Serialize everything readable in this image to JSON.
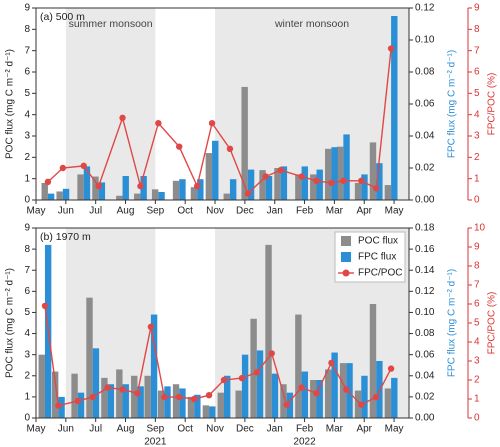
{
  "chart_data": [
    {
      "type": "bar-line",
      "label": "(a) 500 m",
      "x": [
        0.4,
        0.9,
        1.6,
        2.1,
        2.9,
        3.5,
        4.1,
        4.8,
        5.4,
        5.9,
        6.5,
        7.1,
        7.7,
        8.2,
        8.9,
        9.4,
        9.9,
        10.3,
        10.9,
        11.4,
        11.9
      ],
      "series": [
        {
          "color": "#8c8c8c",
          "values": [
            0.8,
            0.4,
            1.2,
            1.1,
            0.2,
            0.3,
            0.5,
            0.9,
            0.6,
            2.2,
            0.3,
            5.3,
            1.4,
            1.5,
            1.2,
            1.2,
            2.4,
            2.5,
            0.8,
            2.7,
            0.7
          ]
        },
        {
          "color": "#2b8fd6",
          "axis": "y2",
          "values": [
            0.004,
            0.007,
            0.021,
            0.011,
            0.015,
            0.015,
            0.005,
            0.013,
            0.013,
            0.037,
            0.013,
            0.019,
            0.015,
            0.021,
            0.021,
            0.019,
            0.033,
            0.041,
            0.016,
            0.023,
            0.115
          ]
        },
        {
          "color": "#e04848",
          "axis": "y3",
          "values": [
            0.85,
            1.5,
            1.6,
            0.65,
            3.85,
            0.65,
            3.6,
            2.5,
            0.65,
            3.6,
            2.4,
            0.3,
            1.1,
            1.4,
            1.1,
            0.9,
            0.8,
            0.9,
            0.9,
            0.55,
            7.1
          ]
        }
      ],
      "ylabel": "POC flux (mg C m⁻² d⁻¹)",
      "y2label": "FPC flux (mg C m⁻² d⁻¹)",
      "y3label": "FPC/POC (%)",
      "xlim": [
        0,
        12.5
      ],
      "xticks": [
        {
          "value": 0,
          "label": "May"
        },
        {
          "value": 1,
          "label": "Jun"
        },
        {
          "value": 2,
          "label": "Jul"
        },
        {
          "value": 3,
          "label": "Aug"
        },
        {
          "value": 4,
          "label": "Sep"
        },
        {
          "value": 5,
          "label": "Oct"
        },
        {
          "value": 6,
          "label": "Nov"
        },
        {
          "value": 7,
          "label": "Dec"
        },
        {
          "value": 8,
          "label": "Jan"
        },
        {
          "value": 9,
          "label": "Feb"
        },
        {
          "value": 10,
          "label": "Mar"
        },
        {
          "value": 11,
          "label": "Apr"
        },
        {
          "value": 12,
          "label": "May"
        }
      ],
      "ylim": [
        0,
        9
      ],
      "yticks": [
        0,
        1,
        2,
        3,
        4,
        5,
        6,
        7,
        8,
        9
      ],
      "y2lim": [
        0,
        0.12
      ],
      "y2ticks": [
        {
          "value": 0,
          "label": "0.00"
        },
        0.02,
        0.04,
        0.06,
        0.08,
        {
          "value": 0.1,
          "label": "0.10"
        },
        0.12
      ],
      "y3lim": [
        0,
        9
      ],
      "y3ticks": [
        0,
        1,
        2,
        3,
        4,
        5,
        6,
        7,
        8,
        9
      ],
      "shading": [
        {
          "range": [
            1,
            4
          ],
          "label": "summer monsoon"
        },
        {
          "range": [
            6,
            12.5
          ],
          "label": "winter monsoon"
        }
      ]
    },
    {
      "type": "bar-line",
      "label": "(b) 1970 m",
      "x": [
        0.3,
        0.75,
        1.4,
        1.9,
        2.4,
        2.9,
        3.4,
        3.85,
        4.3,
        4.8,
        5.3,
        5.8,
        6.3,
        6.9,
        7.4,
        7.9,
        8.4,
        8.9,
        9.4,
        9.9,
        10.4,
        10.9,
        11.4,
        11.9
      ],
      "series": [
        {
          "name": "POC flux",
          "color": "#8c8c8c",
          "values": [
            3.0,
            2.2,
            2.1,
            5.7,
            1.9,
            2.3,
            2.0,
            2.0,
            1.3,
            1.6,
            1.0,
            0.6,
            1.2,
            1.3,
            4.7,
            8.2,
            1.6,
            4.9,
            1.8,
            2.3,
            2.6,
            1.3,
            5.4,
            1.4
          ]
        },
        {
          "name": "FPC flux",
          "color": "#2b8fd6",
          "axis": "y2",
          "values": [
            0.164,
            0.02,
            0.024,
            0.066,
            0.032,
            0.032,
            0.03,
            0.098,
            0.03,
            0.028,
            0.022,
            0.011,
            0.04,
            0.06,
            0.064,
            0.042,
            0.024,
            0.044,
            0.036,
            0.062,
            0.052,
            0.04,
            0.054,
            0.038
          ]
        },
        {
          "name": "FPC/POC",
          "color": "#e04848",
          "axis": "y3",
          "values": [
            5.9,
            0.65,
            0.9,
            1.1,
            1.6,
            1.5,
            1.3,
            4.8,
            1.1,
            1.1,
            1.0,
            1.2,
            2.0,
            2.1,
            2.4,
            3.4,
            0.7,
            1.6,
            1.3,
            2.9,
            1.5,
            0.7,
            1.1,
            2.6
          ]
        }
      ],
      "ylabel": "POC flux (mg C m⁻² d⁻¹)",
      "y2label": "FPC flux (mg C m⁻² d⁻¹)",
      "y3label": "FPC/POC (%)",
      "xlim": [
        0,
        12.5
      ],
      "xticks": [
        {
          "value": 0,
          "label": "May"
        },
        {
          "value": 1,
          "label": "Jun"
        },
        {
          "value": 2,
          "label": "Jul"
        },
        {
          "value": 3,
          "label": "Aug"
        },
        {
          "value": 4,
          "label": "Sep"
        },
        {
          "value": 5,
          "label": "Oct"
        },
        {
          "value": 6,
          "label": "Nov"
        },
        {
          "value": 7,
          "label": "Dec"
        },
        {
          "value": 8,
          "label": "Jan"
        },
        {
          "value": 9,
          "label": "Feb"
        },
        {
          "value": 10,
          "label": "Mar"
        },
        {
          "value": 11,
          "label": "Apr"
        },
        {
          "value": 12,
          "label": "May"
        }
      ],
      "year_labels": [
        {
          "value": 4,
          "label": "2021"
        },
        {
          "value": 9,
          "label": "2022"
        }
      ],
      "ylim": [
        0,
        9
      ],
      "yticks": [
        0,
        1,
        2,
        3,
        4,
        5,
        6,
        7,
        8,
        9
      ],
      "y2lim": [
        0,
        0.18
      ],
      "y2ticks": [
        {
          "value": 0,
          "label": "0.00"
        },
        0.02,
        0.04,
        0.06,
        0.08,
        {
          "value": 0.1,
          "label": "0.10"
        },
        0.12,
        0.14,
        0.16,
        0.18
      ],
      "y3lim": [
        0,
        10
      ],
      "y3ticks": [
        0,
        1,
        2,
        3,
        4,
        5,
        6,
        7,
        8,
        9,
        10
      ],
      "shading": [
        {
          "range": [
            1,
            4
          ]
        },
        {
          "range": [
            6,
            12.5
          ]
        }
      ],
      "legend": "upper right"
    }
  ]
}
